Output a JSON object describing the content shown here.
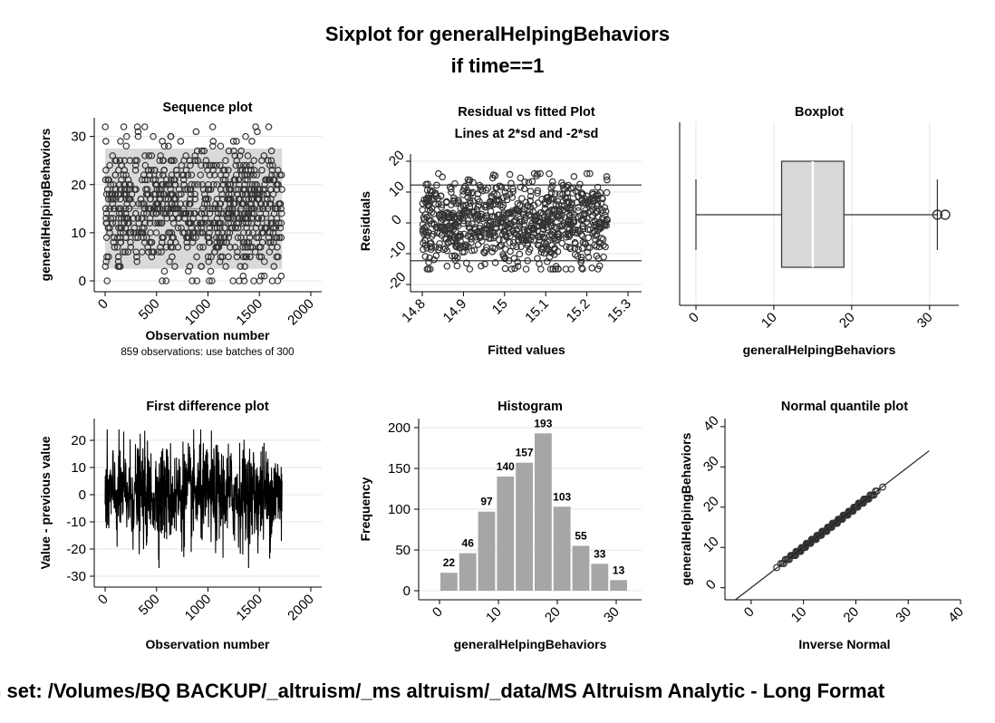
{
  "title": "Sixplot for generalHelpingBehaviors",
  "subtitle": "if time==1",
  "footer": "n set: /Volumes/BQ BACKUP/_altruism/_ms altruism/_data/MS Altruism Analytic - Long Format",
  "chart_data": [
    {
      "id": "sequence",
      "type": "scatter",
      "title": "Sequence plot",
      "xlabel": "Observation number",
      "ylabel": "generalHelpingBehaviors",
      "note": "859 observations: use batches of 300",
      "xlim": [
        0,
        2000
      ],
      "ylim": [
        0,
        32
      ],
      "xticks": [
        0,
        500,
        1000,
        1500,
        2000
      ],
      "yticks": [
        0,
        10,
        20,
        30
      ],
      "x_range_of_points": [
        0,
        1720
      ],
      "band": [
        2.5,
        27.5
      ],
      "n": 859
    },
    {
      "id": "residual",
      "type": "scatter",
      "title": "Residual vs fitted Plot",
      "subtitle": "Lines at 2*sd and -2*sd",
      "xlabel": "Fitted values",
      "ylabel": "Residuals",
      "xlim": [
        14.8,
        15.3
      ],
      "ylim": [
        -20,
        20
      ],
      "xticks": [
        14.8,
        14.9,
        15,
        15.1,
        15.2,
        15.3
      ],
      "xticklabels": [
        "14.8",
        "14.9",
        "15",
        "15.1",
        "15.2",
        "15.3"
      ],
      "yticks": [
        -20,
        -10,
        0,
        10,
        20
      ],
      "sd_lines": [
        12.3,
        -12.3
      ],
      "fitted_range": [
        14.8,
        15.25
      ]
    },
    {
      "id": "boxplot",
      "type": "box",
      "title": "Boxplot",
      "xlabel": "generalHelpingBehaviors",
      "xlim": [
        0,
        32
      ],
      "xticks": [
        0,
        10,
        20,
        30
      ],
      "whisker_low": 0,
      "q1": 11,
      "median": 15,
      "q3": 19,
      "whisker_high": 31,
      "outliers": [
        31,
        32
      ]
    },
    {
      "id": "first_difference",
      "type": "line",
      "title": "First difference plot",
      "xlabel": "Observation number",
      "ylabel": "Value - previous value",
      "xlim": [
        0,
        2000
      ],
      "ylim": [
        -30,
        20
      ],
      "xticks": [
        0,
        500,
        1000,
        1500,
        2000
      ],
      "yticks": [
        -30,
        -20,
        -10,
        0,
        10,
        20
      ],
      "x_range_of_points": [
        0,
        1720
      ]
    },
    {
      "id": "histogram",
      "type": "bar",
      "title": "Histogram",
      "xlabel": "generalHelpingBehaviors",
      "ylabel": "Frequency",
      "xlim": [
        0,
        32
      ],
      "ylim": [
        0,
        200
      ],
      "xticks": [
        0,
        10,
        20,
        30
      ],
      "yticks": [
        0,
        50,
        100,
        150,
        200
      ],
      "bin_width": 3.2,
      "bins_start": 0,
      "values": [
        22,
        46,
        97,
        140,
        157,
        193,
        103,
        55,
        33,
        13
      ],
      "labels": [
        "22",
        "46",
        "97",
        "140",
        "157",
        "193",
        "103",
        "55",
        "33",
        "13"
      ]
    },
    {
      "id": "normal_quantile",
      "type": "scatter",
      "title": "Normal quantile plot",
      "xlabel": "Inverse Normal",
      "ylabel": "generalHelpingBehaviors",
      "xlim": [
        -5,
        40
      ],
      "ylim": [
        -3,
        42
      ],
      "xticks": [
        0,
        10,
        20,
        30,
        40
      ],
      "yticks": [
        0,
        10,
        20,
        30,
        40
      ],
      "mean": 15,
      "sd": 6.5
    }
  ]
}
